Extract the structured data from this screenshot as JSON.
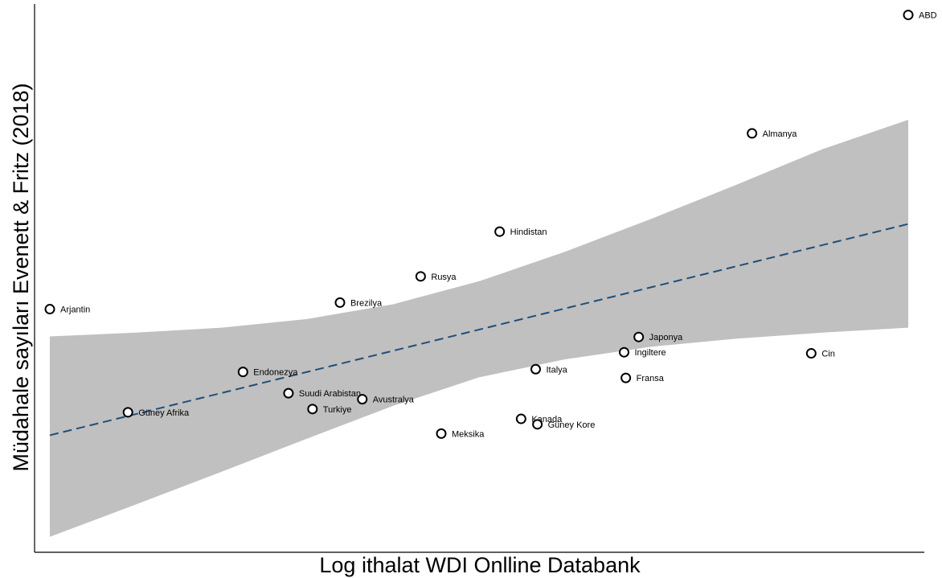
{
  "chart_data": {
    "type": "scatter",
    "title": "",
    "xlabel": "Log ithalat WDI Onlline Databank",
    "ylabel": "Müdahale sayıları Evenett & Fritz (2018)",
    "xlim": [
      0,
      100
    ],
    "ylim": [
      0,
      100
    ],
    "grid": false,
    "axis_tick_labels": "none",
    "points": [
      {
        "label": "ABD",
        "x": 100.0,
        "y": 98.0
      },
      {
        "label": "Almanya",
        "x": 81.8,
        "y": 76.3
      },
      {
        "label": "Hindistan",
        "x": 52.4,
        "y": 58.3
      },
      {
        "label": "Rusya",
        "x": 43.2,
        "y": 50.1
      },
      {
        "label": "Brezilya",
        "x": 33.8,
        "y": 45.3
      },
      {
        "label": "Arjantin",
        "x": 0.0,
        "y": 44.1
      },
      {
        "label": "Japonya",
        "x": 68.6,
        "y": 39.0
      },
      {
        "label": "Ingiltere",
        "x": 66.9,
        "y": 36.2
      },
      {
        "label": "Cin",
        "x": 88.7,
        "y": 36.0
      },
      {
        "label": "Italya",
        "x": 56.6,
        "y": 33.1
      },
      {
        "label": "Fransa",
        "x": 67.1,
        "y": 31.5
      },
      {
        "label": "Endonezya",
        "x": 22.5,
        "y": 32.6
      },
      {
        "label": "Suudi Arabistan",
        "x": 27.8,
        "y": 28.7
      },
      {
        "label": "Avustralya",
        "x": 36.4,
        "y": 27.6
      },
      {
        "label": "Turkiye",
        "x": 30.6,
        "y": 25.8
      },
      {
        "label": "Güney Afrika",
        "x": 9.1,
        "y": 25.2
      },
      {
        "label": "Kanada",
        "x": 54.9,
        "y": 24.0
      },
      {
        "label": "Güney Kore",
        "x": 56.8,
        "y": 23.0
      },
      {
        "label": "Meksika",
        "x": 45.6,
        "y": 21.3
      }
    ],
    "fit_line": {
      "style": "dashed",
      "color": "#1f4e79",
      "x": [
        0,
        100
      ],
      "y": [
        21.0,
        59.7
      ]
    },
    "confidence_band": {
      "color": "#c0c0c0",
      "x": [
        0,
        10,
        20,
        30,
        40,
        50,
        60,
        70,
        80,
        90,
        100
      ],
      "upper": [
        39.1,
        39.8,
        40.7,
        42.3,
        45.0,
        49.2,
        54.6,
        60.6,
        66.9,
        73.4,
        78.8
      ],
      "lower": [
        2.4,
        8.3,
        14.3,
        20.4,
        26.4,
        31.6,
        34.9,
        37.2,
        38.7,
        39.8,
        40.7
      ]
    },
    "colors": {
      "points": "#000000",
      "band": "#c0c0c0",
      "fit": "#1f4e79",
      "axis": "#000000"
    }
  }
}
